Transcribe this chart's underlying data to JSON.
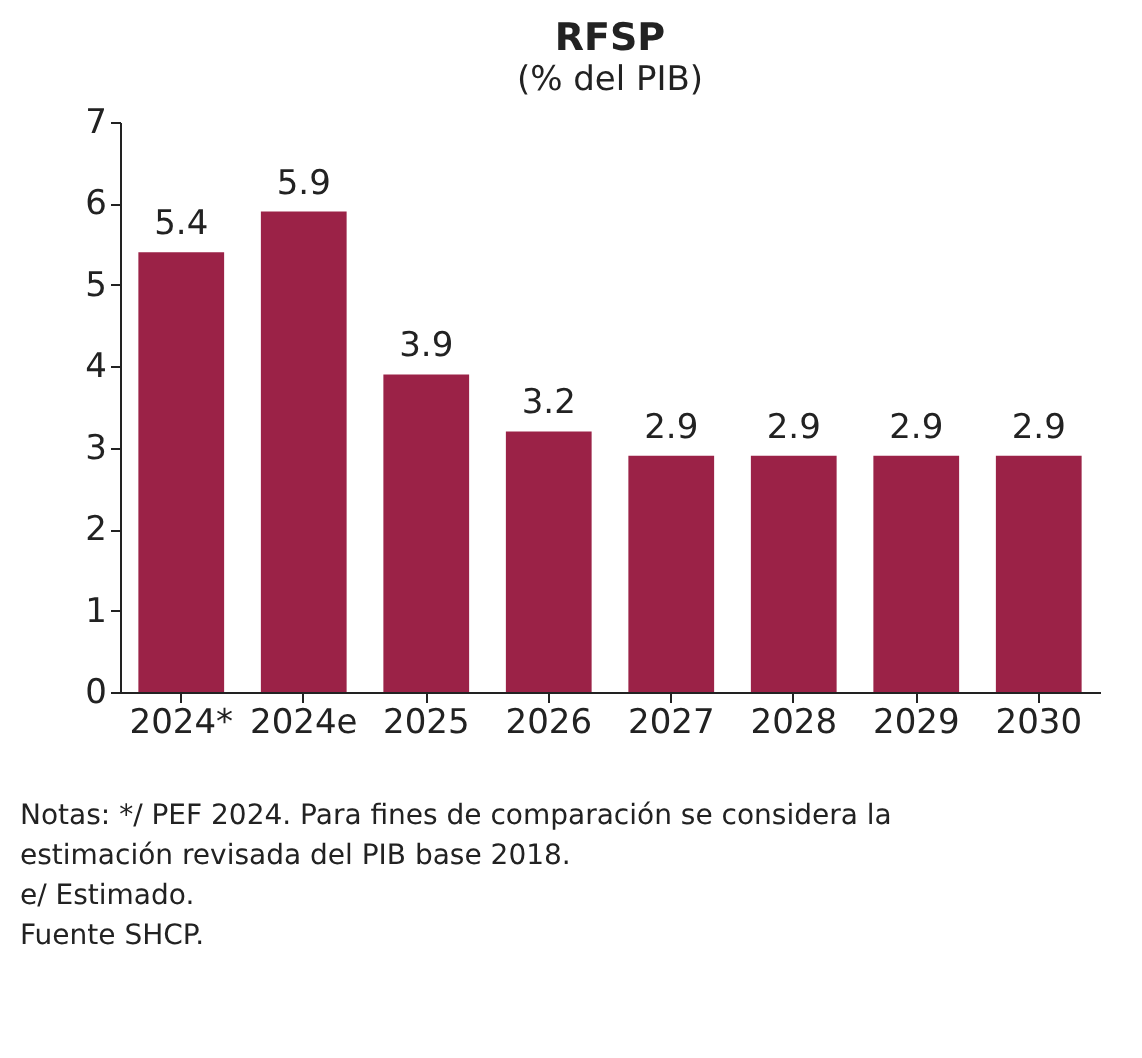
{
  "chart_data": {
    "type": "bar",
    "title": "RFSP",
    "subtitle": "(% del PIB)",
    "categories": [
      "2024*",
      "2024e",
      "2025",
      "2026",
      "2027",
      "2028",
      "2029",
      "2030"
    ],
    "values": [
      5.4,
      5.9,
      3.9,
      3.2,
      2.9,
      2.9,
      2.9,
      2.9
    ],
    "color": "#9b2247",
    "ylim": [
      0,
      7
    ],
    "yticks": [
      0,
      1,
      2,
      3,
      4,
      5,
      6,
      7
    ],
    "grid": false,
    "data_labels": true,
    "annotations": [
      "Notas: */ PEF 2024. Para fines de comparación se considera la estimación revisada del PIB base 2018.",
      "e/ Estimado.",
      "Fuente SHCP."
    ]
  }
}
